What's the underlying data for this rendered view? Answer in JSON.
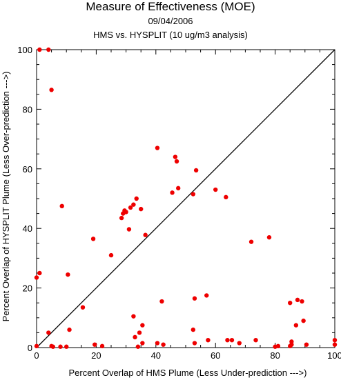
{
  "chart_data": {
    "type": "scatter",
    "title": "Measure of Effectiveness (MOE)",
    "subtitle": "09/04/2006",
    "subtitle2": "HMS vs. HYSPLIT  (10 ug/m3 analysis)",
    "xlabel": "Percent Overlap of HMS Plume (Less Under-prediction --->)",
    "ylabel": "Percent Overlap of HYSPLIT Plume (Less Over-prediction --->)",
    "xlim": [
      0,
      100
    ],
    "ylim": [
      0,
      100
    ],
    "xticks": [
      0,
      20,
      40,
      60,
      80,
      100
    ],
    "yticks": [
      0,
      20,
      40,
      60,
      80,
      100
    ],
    "grid": false,
    "reference_line": "diagonal y = x",
    "marker_color": "#ee0000",
    "points": [
      [
        1,
        100
      ],
      [
        4,
        100
      ],
      [
        5,
        86.5
      ],
      [
        0,
        23.5
      ],
      [
        1,
        25
      ],
      [
        0,
        0.5
      ],
      [
        4,
        5
      ],
      [
        5,
        0.5
      ],
      [
        5.5,
        0.3
      ],
      [
        8,
        0.3
      ],
      [
        10,
        0.3
      ],
      [
        8.5,
        47.5
      ],
      [
        10.5,
        24.5
      ],
      [
        11,
        6
      ],
      [
        15.5,
        13.5
      ],
      [
        19,
        36.5
      ],
      [
        19.5,
        1
      ],
      [
        22,
        0.5
      ],
      [
        25,
        31
      ],
      [
        28.5,
        43.5
      ],
      [
        29,
        45
      ],
      [
        29.5,
        46
      ],
      [
        30,
        45.5
      ],
      [
        31,
        39.7
      ],
      [
        31.5,
        47
      ],
      [
        32.5,
        48
      ],
      [
        32.5,
        10.5
      ],
      [
        33,
        3.5
      ],
      [
        33.5,
        50
      ],
      [
        34,
        0.3
      ],
      [
        34.5,
        5
      ],
      [
        35,
        46.5
      ],
      [
        35.5,
        1.5
      ],
      [
        35.5,
        7.5
      ],
      [
        36.5,
        37.8
      ],
      [
        40.5,
        67
      ],
      [
        40.5,
        1.5
      ],
      [
        42,
        15.5
      ],
      [
        42.5,
        1
      ],
      [
        45.5,
        52
      ],
      [
        46.5,
        64
      ],
      [
        47,
        62.5
      ],
      [
        47.5,
        53.5
      ],
      [
        52.5,
        51.5
      ],
      [
        52.5,
        6
      ],
      [
        53,
        1.5
      ],
      [
        53,
        16.5
      ],
      [
        53.5,
        59.5
      ],
      [
        57,
        17.5
      ],
      [
        57.5,
        2.5
      ],
      [
        60,
        53
      ],
      [
        63.5,
        50.5
      ],
      [
        64,
        2.5
      ],
      [
        65.5,
        2.5
      ],
      [
        68,
        1.5
      ],
      [
        72,
        35.5
      ],
      [
        73.5,
        2.5
      ],
      [
        78,
        37
      ],
      [
        80,
        0.3
      ],
      [
        81,
        0.5
      ],
      [
        85,
        15
      ],
      [
        85,
        0.5
      ],
      [
        85.5,
        1
      ],
      [
        85.5,
        2
      ],
      [
        87,
        7.5
      ],
      [
        87.5,
        16
      ],
      [
        89,
        15.5
      ],
      [
        89.5,
        9
      ],
      [
        90.5,
        1
      ],
      [
        100,
        2.5
      ],
      [
        100,
        1
      ]
    ]
  }
}
